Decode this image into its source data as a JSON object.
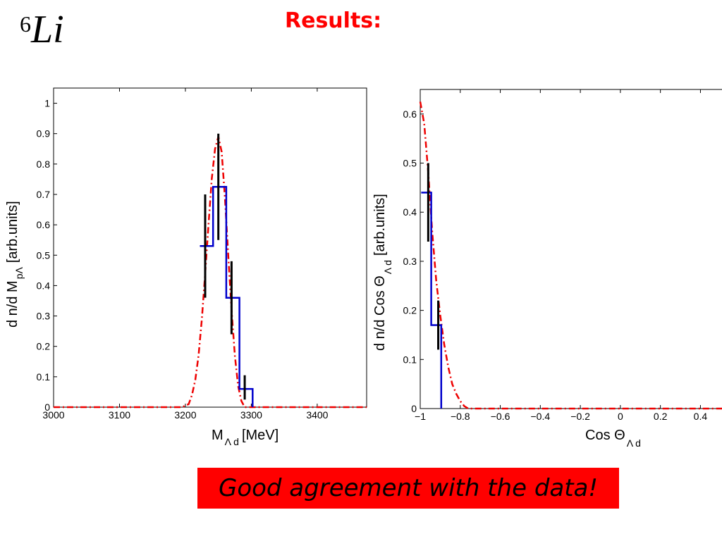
{
  "slide": {
    "nucleus_mass_number": "6",
    "nucleus_symbol": "Li",
    "heading": "Results:",
    "banner": "Good agreement with the data!"
  },
  "colors": {
    "data": "#000000",
    "hist": "#0000cc",
    "fit": "#ee0000",
    "heading": "#ff0000",
    "banner_bg": "#ff0000"
  },
  "chart_data": [
    {
      "type": "line",
      "xlabel_main": "M",
      "xlabel_sub": "Λ d",
      "xlabel_unit": "[MeV]",
      "ylabel_main": "d n/d M",
      "ylabel_sub": "pΛ",
      "ylabel_unit": "[arb.units]",
      "xlim": [
        3000,
        3475
      ],
      "ylim": [
        0,
        1.05
      ],
      "xticks": [
        3000,
        3100,
        3200,
        3300,
        3400
      ],
      "yticks": [
        0,
        0.1,
        0.2,
        0.3,
        0.4,
        0.5,
        0.6,
        0.7,
        0.8,
        0.9,
        1
      ],
      "histogram": {
        "edges": [
          3222,
          3242,
          3262,
          3282,
          3302
        ],
        "values": [
          0.53,
          0.725,
          0.36,
          0.06
        ]
      },
      "data_points": [
        {
          "x": 3230,
          "y": 0.53,
          "err": 0.17
        },
        {
          "x": 3250,
          "y": 0.725,
          "err": 0.175
        },
        {
          "x": 3270,
          "y": 0.36,
          "err": 0.12
        },
        {
          "x": 3290,
          "y": 0.065,
          "err": 0.04
        }
      ],
      "fit_curve": {
        "x": [
          3000,
          3100,
          3195,
          3200,
          3205,
          3210,
          3215,
          3220,
          3225,
          3230,
          3235,
          3240,
          3245,
          3250,
          3255,
          3260,
          3265,
          3270,
          3275,
          3280,
          3285,
          3290,
          3475
        ],
        "y": [
          0,
          0,
          0,
          0.005,
          0.01,
          0.04,
          0.09,
          0.17,
          0.29,
          0.44,
          0.6,
          0.75,
          0.85,
          0.89,
          0.84,
          0.69,
          0.5,
          0.32,
          0.17,
          0.07,
          0.02,
          0,
          0
        ]
      }
    },
    {
      "type": "line",
      "xlabel_main": "Cos Θ",
      "xlabel_sub": "Λ d",
      "ylabel_main": "d n/d Cos Θ",
      "ylabel_sub": "Λ d",
      "ylabel_unit": "[arb.units]",
      "xlim": [
        -1,
        0.55
      ],
      "ylim": [
        0,
        0.65
      ],
      "xticks": [
        -1,
        -0.8,
        -0.6,
        -0.4,
        -0.2,
        0,
        0.2,
        0.4
      ],
      "xtick_labels": [
        "−1",
        "−0.8",
        "−0.6",
        "−0.4",
        "−0.2",
        "0",
        "0.2",
        "0.4"
      ],
      "yticks": [
        0,
        0.1,
        0.2,
        0.3,
        0.4,
        0.5,
        0.6
      ],
      "histogram": {
        "edges": [
          -0.995,
          -0.945,
          -0.895
        ],
        "values": [
          0.44,
          0.17
        ]
      },
      "data_points": [
        {
          "x": -0.96,
          "y": 0.42,
          "err": 0.08
        },
        {
          "x": -0.91,
          "y": 0.17,
          "err": 0.05
        }
      ],
      "fit_curve": {
        "x": [
          -1,
          -0.98,
          -0.96,
          -0.94,
          -0.92,
          -0.9,
          -0.88,
          -0.86,
          -0.84,
          -0.82,
          -0.8,
          -0.78,
          -0.76,
          -0.74,
          0.55
        ],
        "y": [
          0.625,
          0.58,
          0.48,
          0.36,
          0.26,
          0.19,
          0.13,
          0.085,
          0.05,
          0.03,
          0.015,
          0.005,
          0,
          0,
          0
        ]
      }
    }
  ]
}
